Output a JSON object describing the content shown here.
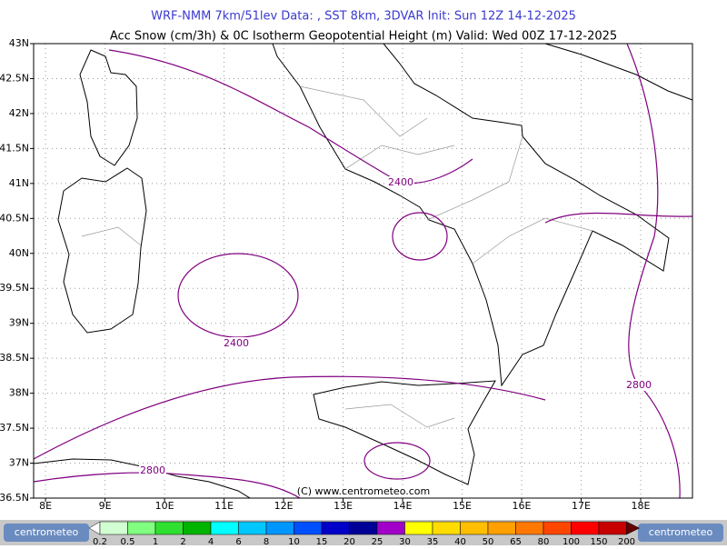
{
  "header": {
    "title": "WRF-NMM 7km/51lev  Data: , SST 8km, 3DVAR  Init: Sun 12Z 14-12-2025",
    "subtitle": "Acc Snow (cm/3h) & 0C Isotherm Geopotential Height (m)  Valid: Wed 00Z 17-12-2025"
  },
  "map": {
    "xlim": [
      7.8,
      18.87
    ],
    "ylim": [
      36.5,
      43
    ],
    "xticks": [
      {
        "value": 8,
        "label": "8E"
      },
      {
        "value": 9,
        "label": "9E"
      },
      {
        "value": 10,
        "label": "10E"
      },
      {
        "value": 11,
        "label": "11E"
      },
      {
        "value": 12,
        "label": "12E"
      },
      {
        "value": 13,
        "label": "13E"
      },
      {
        "value": 14,
        "label": "14E"
      },
      {
        "value": 15,
        "label": "15E"
      },
      {
        "value": 16,
        "label": "16E"
      },
      {
        "value": 17,
        "label": "17E"
      },
      {
        "value": 18,
        "label": "18E"
      }
    ],
    "yticks": [
      {
        "value": 36.5,
        "label": "36.5N"
      },
      {
        "value": 37,
        "label": "37N"
      },
      {
        "value": 37.5,
        "label": "37.5N"
      },
      {
        "value": 38,
        "label": "38N"
      },
      {
        "value": 38.5,
        "label": "38.5N"
      },
      {
        "value": 39,
        "label": "39N"
      },
      {
        "value": 39.5,
        "label": "39.5N"
      },
      {
        "value": 40,
        "label": "40N"
      },
      {
        "value": 40.5,
        "label": "40.5N"
      },
      {
        "value": 41,
        "label": "41N"
      },
      {
        "value": 41.5,
        "label": "41.5N"
      },
      {
        "value": 42,
        "label": "42N"
      },
      {
        "value": 42.5,
        "label": "42.5N"
      },
      {
        "value": 43,
        "label": "43N"
      }
    ],
    "grid": true,
    "contour_color": "#800080",
    "contour_labels": [
      "2400",
      "2400",
      "2800",
      "2800"
    ],
    "copyright": "(C) www.centrometeo.com"
  },
  "colorbar": {
    "levels": [
      0.2,
      0.5,
      1,
      2,
      4,
      6,
      8,
      10,
      15,
      20,
      25,
      30,
      35,
      40,
      50,
      65,
      80,
      100,
      150,
      200
    ],
    "colors": [
      "#ffffff",
      "#d2ffd2",
      "#80ff80",
      "#30e030",
      "#00b400",
      "#00ffff",
      "#00c8ff",
      "#0096ff",
      "#0050ff",
      "#0000c8",
      "#000096",
      "#a000c8",
      "#ffff00",
      "#ffdc00",
      "#ffbe00",
      "#ffa000",
      "#ff7800",
      "#ff4600",
      "#ff0000",
      "#c80000",
      "#960000",
      "#640000"
    ]
  },
  "logos": [
    "centrometeo",
    "centrometeo"
  ]
}
